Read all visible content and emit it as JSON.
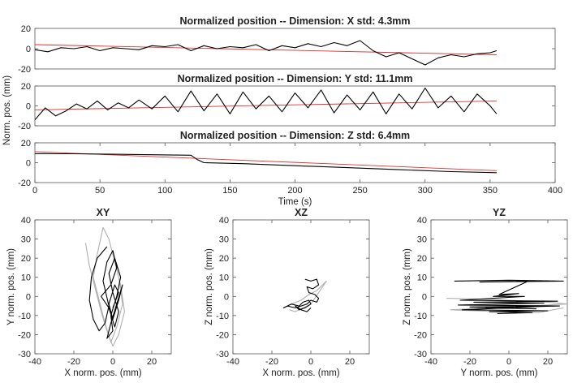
{
  "figure": {
    "shared_ylabel": "Norm. pos. (mm)",
    "time_xlabel": "Time (s)"
  },
  "chart_data": [
    {
      "type": "line",
      "title": "Normalized position -- Dimension: X std: 4.3mm",
      "xlabel": "",
      "ylabel": "",
      "xlim": [
        0,
        400
      ],
      "ylim": [
        -20,
        20
      ],
      "yticks": [
        -20,
        0,
        20
      ],
      "series": [
        {
          "color": "#000000",
          "x": [
            0,
            10,
            20,
            30,
            40,
            50,
            60,
            70,
            80,
            90,
            100,
            110,
            120,
            130,
            140,
            150,
            160,
            170,
            180,
            190,
            200,
            210,
            220,
            230,
            240,
            250,
            260,
            270,
            280,
            290,
            300,
            310,
            320,
            330,
            340,
            350,
            355
          ],
          "y": [
            -1,
            -3,
            1,
            0,
            2,
            -2,
            1,
            0,
            -1,
            3,
            2,
            4,
            -2,
            3,
            0,
            2,
            1,
            4,
            -2,
            3,
            1,
            5,
            2,
            6,
            3,
            8,
            -2,
            -8,
            -4,
            -10,
            -16,
            -9,
            -6,
            -8,
            -5,
            -4,
            -2
          ]
        },
        {
          "color": "#e03030",
          "x": [
            0,
            355
          ],
          "y": [
            4,
            -6
          ]
        }
      ]
    },
    {
      "type": "line",
      "title": "Normalized position -- Dimension: Y std: 11.1mm",
      "xlabel": "",
      "ylabel": "",
      "xlim": [
        0,
        400
      ],
      "ylim": [
        -20,
        20
      ],
      "yticks": [
        -20,
        0,
        20
      ],
      "series": [
        {
          "color": "#000000",
          "x": [
            0,
            8,
            16,
            24,
            32,
            40,
            48,
            56,
            64,
            72,
            80,
            90,
            100,
            110,
            120,
            130,
            140,
            150,
            160,
            170,
            180,
            190,
            200,
            210,
            220,
            230,
            240,
            250,
            260,
            270,
            280,
            290,
            300,
            310,
            320,
            330,
            340,
            350,
            355
          ],
          "y": [
            -14,
            -2,
            -10,
            -5,
            2,
            -3,
            5,
            -4,
            3,
            -2,
            6,
            -3,
            10,
            -6,
            15,
            -5,
            12,
            -8,
            14,
            -3,
            10,
            -6,
            13,
            -2,
            16,
            -7,
            11,
            -4,
            14,
            -8,
            12,
            -3,
            18,
            -2,
            10,
            -6,
            12,
            0,
            -8
          ]
        },
        {
          "color": "#e03030",
          "x": [
            0,
            355
          ],
          "y": [
            -4,
            5
          ]
        }
      ]
    },
    {
      "type": "line",
      "title": "Normalized position -- Dimension: Z std: 6.4mm",
      "xlabel": "Time (s)",
      "ylabel": "",
      "xlim": [
        0,
        400
      ],
      "ylim": [
        -20,
        20
      ],
      "yticks": [
        -20,
        0,
        20
      ],
      "xticks": [
        0,
        50,
        100,
        150,
        200,
        250,
        300,
        350,
        400
      ],
      "series": [
        {
          "color": "#000000",
          "x": [
            0,
            30,
            60,
            90,
            120,
            125,
            130,
            160,
            200,
            240,
            280,
            320,
            355
          ],
          "y": [
            9,
            9,
            8.5,
            8,
            7.5,
            3,
            0,
            -1,
            -3,
            -5,
            -7,
            -9,
            -10
          ]
        },
        {
          "color": "#e03030",
          "x": [
            0,
            355
          ],
          "y": [
            11,
            -8
          ]
        }
      ]
    },
    {
      "type": "scatter",
      "title": "XY",
      "xlabel": "X norm. pos. (mm)",
      "ylabel": "Y norm. pos. (mm)",
      "xlim": [
        -40,
        30
      ],
      "ylim": [
        -30,
        40
      ],
      "xticks": [
        -40,
        -20,
        0,
        20
      ],
      "yticks": [
        -30,
        -20,
        -10,
        0,
        10,
        20,
        30,
        40
      ],
      "series": [
        {
          "color": "#000000",
          "x": [
            -3,
            -8,
            -11,
            -12,
            -10,
            -7,
            -4,
            -2,
            -5,
            -3,
            0,
            2,
            -1,
            -6,
            -2,
            1,
            3,
            0,
            -2,
            1,
            4,
            2,
            -1,
            0,
            -3,
            -1,
            2,
            5,
            3,
            0,
            -2,
            1,
            3,
            0
          ],
          "y": [
            26,
            20,
            10,
            -2,
            -12,
            -18,
            -14,
            -5,
            8,
            18,
            24,
            15,
            6,
            0,
            -6,
            -16,
            -8,
            2,
            12,
            20,
            10,
            0,
            -10,
            -18,
            -22,
            -14,
            -4,
            6,
            -2,
            -12,
            -4,
            6,
            2,
            -6
          ]
        },
        {
          "color": "#b0b0b0",
          "x": [
            -14,
            -12,
            -9,
            -6,
            -3,
            0,
            3,
            6,
            4,
            1,
            -2,
            -5,
            -8,
            -10,
            -7,
            -4,
            -1,
            2,
            5,
            3,
            0
          ],
          "y": [
            28,
            16,
            4,
            -8,
            -18,
            -26,
            -20,
            -8,
            6,
            18,
            30,
            36,
            22,
            10,
            -2,
            -14,
            -24,
            -16,
            -4,
            10,
            24
          ]
        }
      ]
    },
    {
      "type": "scatter",
      "title": "XZ",
      "xlabel": "X norm. pos. (mm)",
      "ylabel": "Z norm. pos. (mm)",
      "xlim": [
        -40,
        30
      ],
      "ylim": [
        -30,
        40
      ],
      "xticks": [
        -40,
        -20,
        0,
        20
      ],
      "yticks": [
        -30,
        -20,
        -10,
        0,
        10,
        20,
        30,
        40
      ],
      "series": [
        {
          "color": "#000000",
          "x": [
            -3,
            0,
            3,
            4,
            1,
            -2,
            -1,
            2,
            4,
            3,
            0,
            -2,
            -5,
            -8,
            -12,
            -14,
            -10,
            -6,
            -4,
            -1,
            0,
            -3,
            -6,
            -8,
            -5,
            -2,
            0
          ],
          "y": [
            9,
            8,
            9,
            6,
            4,
            5,
            2,
            1,
            -1,
            -3,
            -2,
            -4,
            -5,
            -6,
            -5,
            -6,
            -4,
            -5,
            -3,
            -2,
            -4,
            -6,
            -7,
            -5,
            -7,
            -8,
            -6
          ]
        },
        {
          "color": "#b0b0b0",
          "x": [
            -14,
            -10,
            -5,
            -1,
            3,
            6,
            8,
            4,
            0,
            -4,
            -8,
            -11
          ],
          "y": [
            -6,
            -4,
            -2,
            1,
            3,
            6,
            8,
            2,
            -4,
            -6,
            -8,
            -7
          ]
        }
      ]
    },
    {
      "type": "scatter",
      "title": "YZ",
      "xlabel": "Y norm. pos. (mm)",
      "ylabel": "Z norm. pos. (mm)",
      "xlim": [
        -40,
        30
      ],
      "ylim": [
        -30,
        40
      ],
      "xticks": [
        -40,
        -20,
        0,
        20
      ],
      "yticks": [
        -30,
        -20,
        -10,
        0,
        10,
        20,
        30,
        40
      ],
      "series": [
        {
          "color": "#000000",
          "x": [
            -28,
            0,
            28,
            -15,
            10,
            -5,
            5,
            -8,
            8,
            -25,
            25,
            -18,
            18,
            -26,
            26,
            -12,
            14,
            -20,
            22,
            -24,
            20,
            -10,
            12,
            -6
          ],
          "y": [
            8,
            8.5,
            8,
            7.5,
            8,
            1,
            1.5,
            0,
            0,
            -2,
            -2.5,
            -3,
            -3.5,
            -4.5,
            -5,
            -6,
            -6.5,
            -5.5,
            -5,
            -7,
            -7.5,
            -8,
            -8.5,
            -9
          ]
        },
        {
          "color": "#b0b0b0",
          "x": [
            -32,
            -10,
            0,
            20,
            30,
            -30,
            -5,
            15,
            28
          ],
          "y": [
            -1,
            -1.5,
            -2,
            -3,
            -4,
            -7,
            -8,
            -8.5,
            -6
          ]
        }
      ]
    }
  ]
}
